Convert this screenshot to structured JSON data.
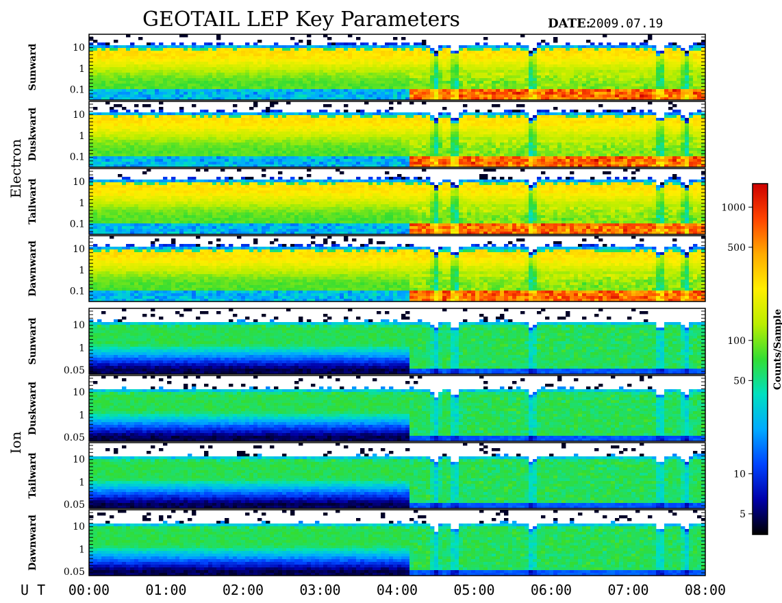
{
  "title": "GEOTAIL LEP Key Parameters",
  "date_label": "DATE:",
  "date_value": "2009.07.19",
  "ut_label": "U T",
  "colors": {
    "colormap": [
      "#000000",
      "#0000aa",
      "#0044ff",
      "#00aaff",
      "#00e0c0",
      "#33dd33",
      "#bbee00",
      "#ffee00",
      "#ffaa00",
      "#ff4400",
      "#cc0000"
    ],
    "frame": "#000000",
    "background": "#ffffff"
  },
  "chart_data": {
    "type": "heatmap",
    "time_ticks": [
      "00:00",
      "01:00",
      "02:00",
      "03:00",
      "04:00",
      "05:00",
      "06:00",
      "07:00",
      "08:00"
    ],
    "time_range": [
      "00:00",
      "08:00"
    ],
    "groups": [
      {
        "name": "Electron",
        "panels": [
          {
            "label": "Sunward",
            "yticks": [
              "10",
              "1",
              "0.1"
            ]
          },
          {
            "label": "Duskward",
            "yticks": [
              "10",
              "1",
              "0.1"
            ]
          },
          {
            "label": "Tailward",
            "yticks": [
              "10",
              "1",
              "0.1"
            ]
          },
          {
            "label": "Dawnward",
            "yticks": [
              "10",
              "1",
              "0.1"
            ]
          }
        ]
      },
      {
        "name": "Ion",
        "panels": [
          {
            "label": "Sunward",
            "yticks": [
              "10",
              "1",
              "0.05"
            ]
          },
          {
            "label": "Duskward",
            "yticks": [
              "10",
              "1",
              "0.05"
            ]
          },
          {
            "label": "Tailward",
            "yticks": [
              "10",
              "1",
              "0.05"
            ]
          },
          {
            "label": "Dawnward",
            "yticks": [
              "10",
              "1",
              "0.05"
            ]
          }
        ]
      }
    ],
    "colorbar": {
      "label": "Counts/Sample",
      "scale": "log",
      "range": [
        3.5,
        1500
      ],
      "ticks": [
        1000,
        500,
        100,
        50,
        10,
        5
      ],
      "tick_labels": [
        "1000",
        "500",
        "100",
        "50",
        "10",
        "5"
      ]
    },
    "features": {
      "electron_low_energy_enhancement_after": "04:10",
      "ion_flux_dropout_after": "04:10",
      "dips_at": [
        "04:30",
        "04:45",
        "05:45",
        "07:25",
        "07:45"
      ]
    }
  }
}
